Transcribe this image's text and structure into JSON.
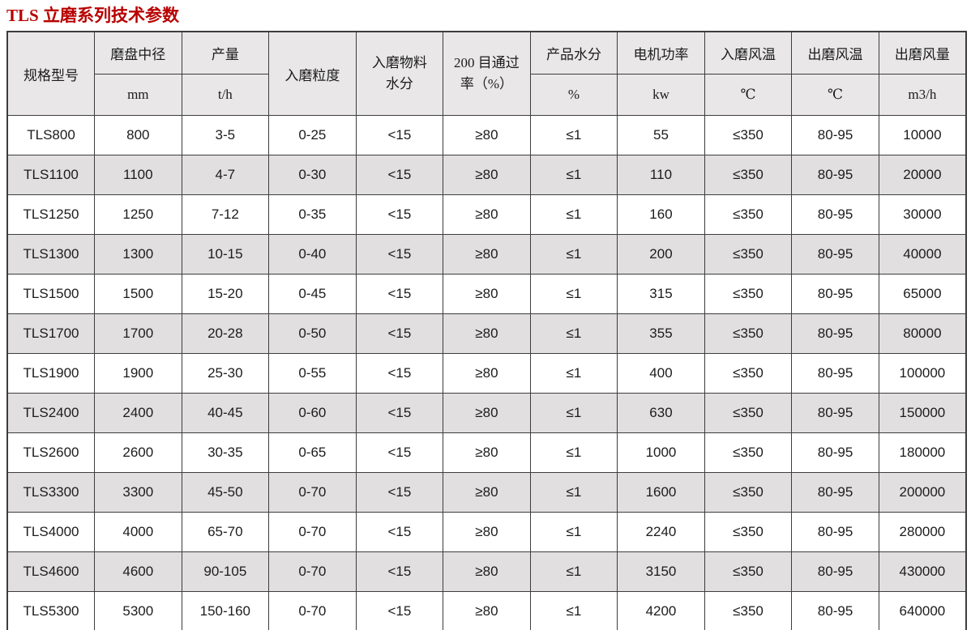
{
  "page": {
    "title": "TLS 立磨系列技术参数"
  },
  "colors": {
    "title_red": "#b80000",
    "header_bg": "#e9e7e7",
    "alt_row_bg": "#e1dfdf",
    "border": "#3d3d3d"
  },
  "table": {
    "columns": [
      {
        "label": "规格型号"
      },
      {
        "label": "磨盘中径",
        "unit": "mm"
      },
      {
        "label": "产量",
        "unit": "t/h"
      },
      {
        "label": "入磨粒度"
      },
      {
        "label": "入磨物料水分",
        "line1": "入磨物料",
        "line2": "水分"
      },
      {
        "label": "200 目通过率（%）",
        "line1": "200 目通过",
        "line2": "率（%）"
      },
      {
        "label": "产品水分",
        "unit": "%"
      },
      {
        "label": "电机功率",
        "unit": "kw"
      },
      {
        "label": "入磨风温",
        "unit": "℃"
      },
      {
        "label": "出磨风温",
        "unit": "℃"
      },
      {
        "label": "出磨风量",
        "unit": "m3/h"
      }
    ],
    "rows": [
      [
        "TLS800",
        "800",
        "3-5",
        "0-25",
        "<15",
        "≥80",
        "≤1",
        "55",
        "≤350",
        "80-95",
        "10000"
      ],
      [
        "TLS1100",
        "1100",
        "4-7",
        "0-30",
        "<15",
        "≥80",
        "≤1",
        "110",
        "≤350",
        "80-95",
        "20000"
      ],
      [
        "TLS1250",
        "1250",
        "7-12",
        "0-35",
        "<15",
        "≥80",
        "≤1",
        "160",
        "≤350",
        "80-95",
        "30000"
      ],
      [
        "TLS1300",
        "1300",
        "10-15",
        "0-40",
        "<15",
        "≥80",
        "≤1",
        "200",
        "≤350",
        "80-95",
        "40000"
      ],
      [
        "TLS1500",
        "1500",
        "15-20",
        "0-45",
        "<15",
        "≥80",
        "≤1",
        "315",
        "≤350",
        "80-95",
        "65000"
      ],
      [
        "TLS1700",
        "1700",
        "20-28",
        "0-50",
        "<15",
        "≥80",
        "≤1",
        "355",
        "≤350",
        "80-95",
        "80000"
      ],
      [
        "TLS1900",
        "1900",
        "25-30",
        "0-55",
        "<15",
        "≥80",
        "≤1",
        "400",
        "≤350",
        "80-95",
        "100000"
      ],
      [
        "TLS2400",
        "2400",
        "40-45",
        "0-60",
        "<15",
        "≥80",
        "≤1",
        "630",
        "≤350",
        "80-95",
        "150000"
      ],
      [
        "TLS2600",
        "2600",
        "30-35",
        "0-65",
        "<15",
        "≥80",
        "≤1",
        "1000",
        "≤350",
        "80-95",
        "180000"
      ],
      [
        "TLS3300",
        "3300",
        "45-50",
        "0-70",
        "<15",
        "≥80",
        "≤1",
        "1600",
        "≤350",
        "80-95",
        "200000"
      ],
      [
        "TLS4000",
        "4000",
        "65-70",
        "0-70",
        "<15",
        "≥80",
        "≤1",
        "2240",
        "≤350",
        "80-95",
        "280000"
      ],
      [
        "TLS4600",
        "4600",
        "90-105",
        "0-70",
        "<15",
        "≥80",
        "≤1",
        "3150",
        "≤350",
        "80-95",
        "430000"
      ],
      [
        "TLS5300",
        "5300",
        "150-160",
        "0-70",
        "<15",
        "≥80",
        "≤1",
        "4200",
        "≤350",
        "80-95",
        "640000"
      ]
    ]
  }
}
